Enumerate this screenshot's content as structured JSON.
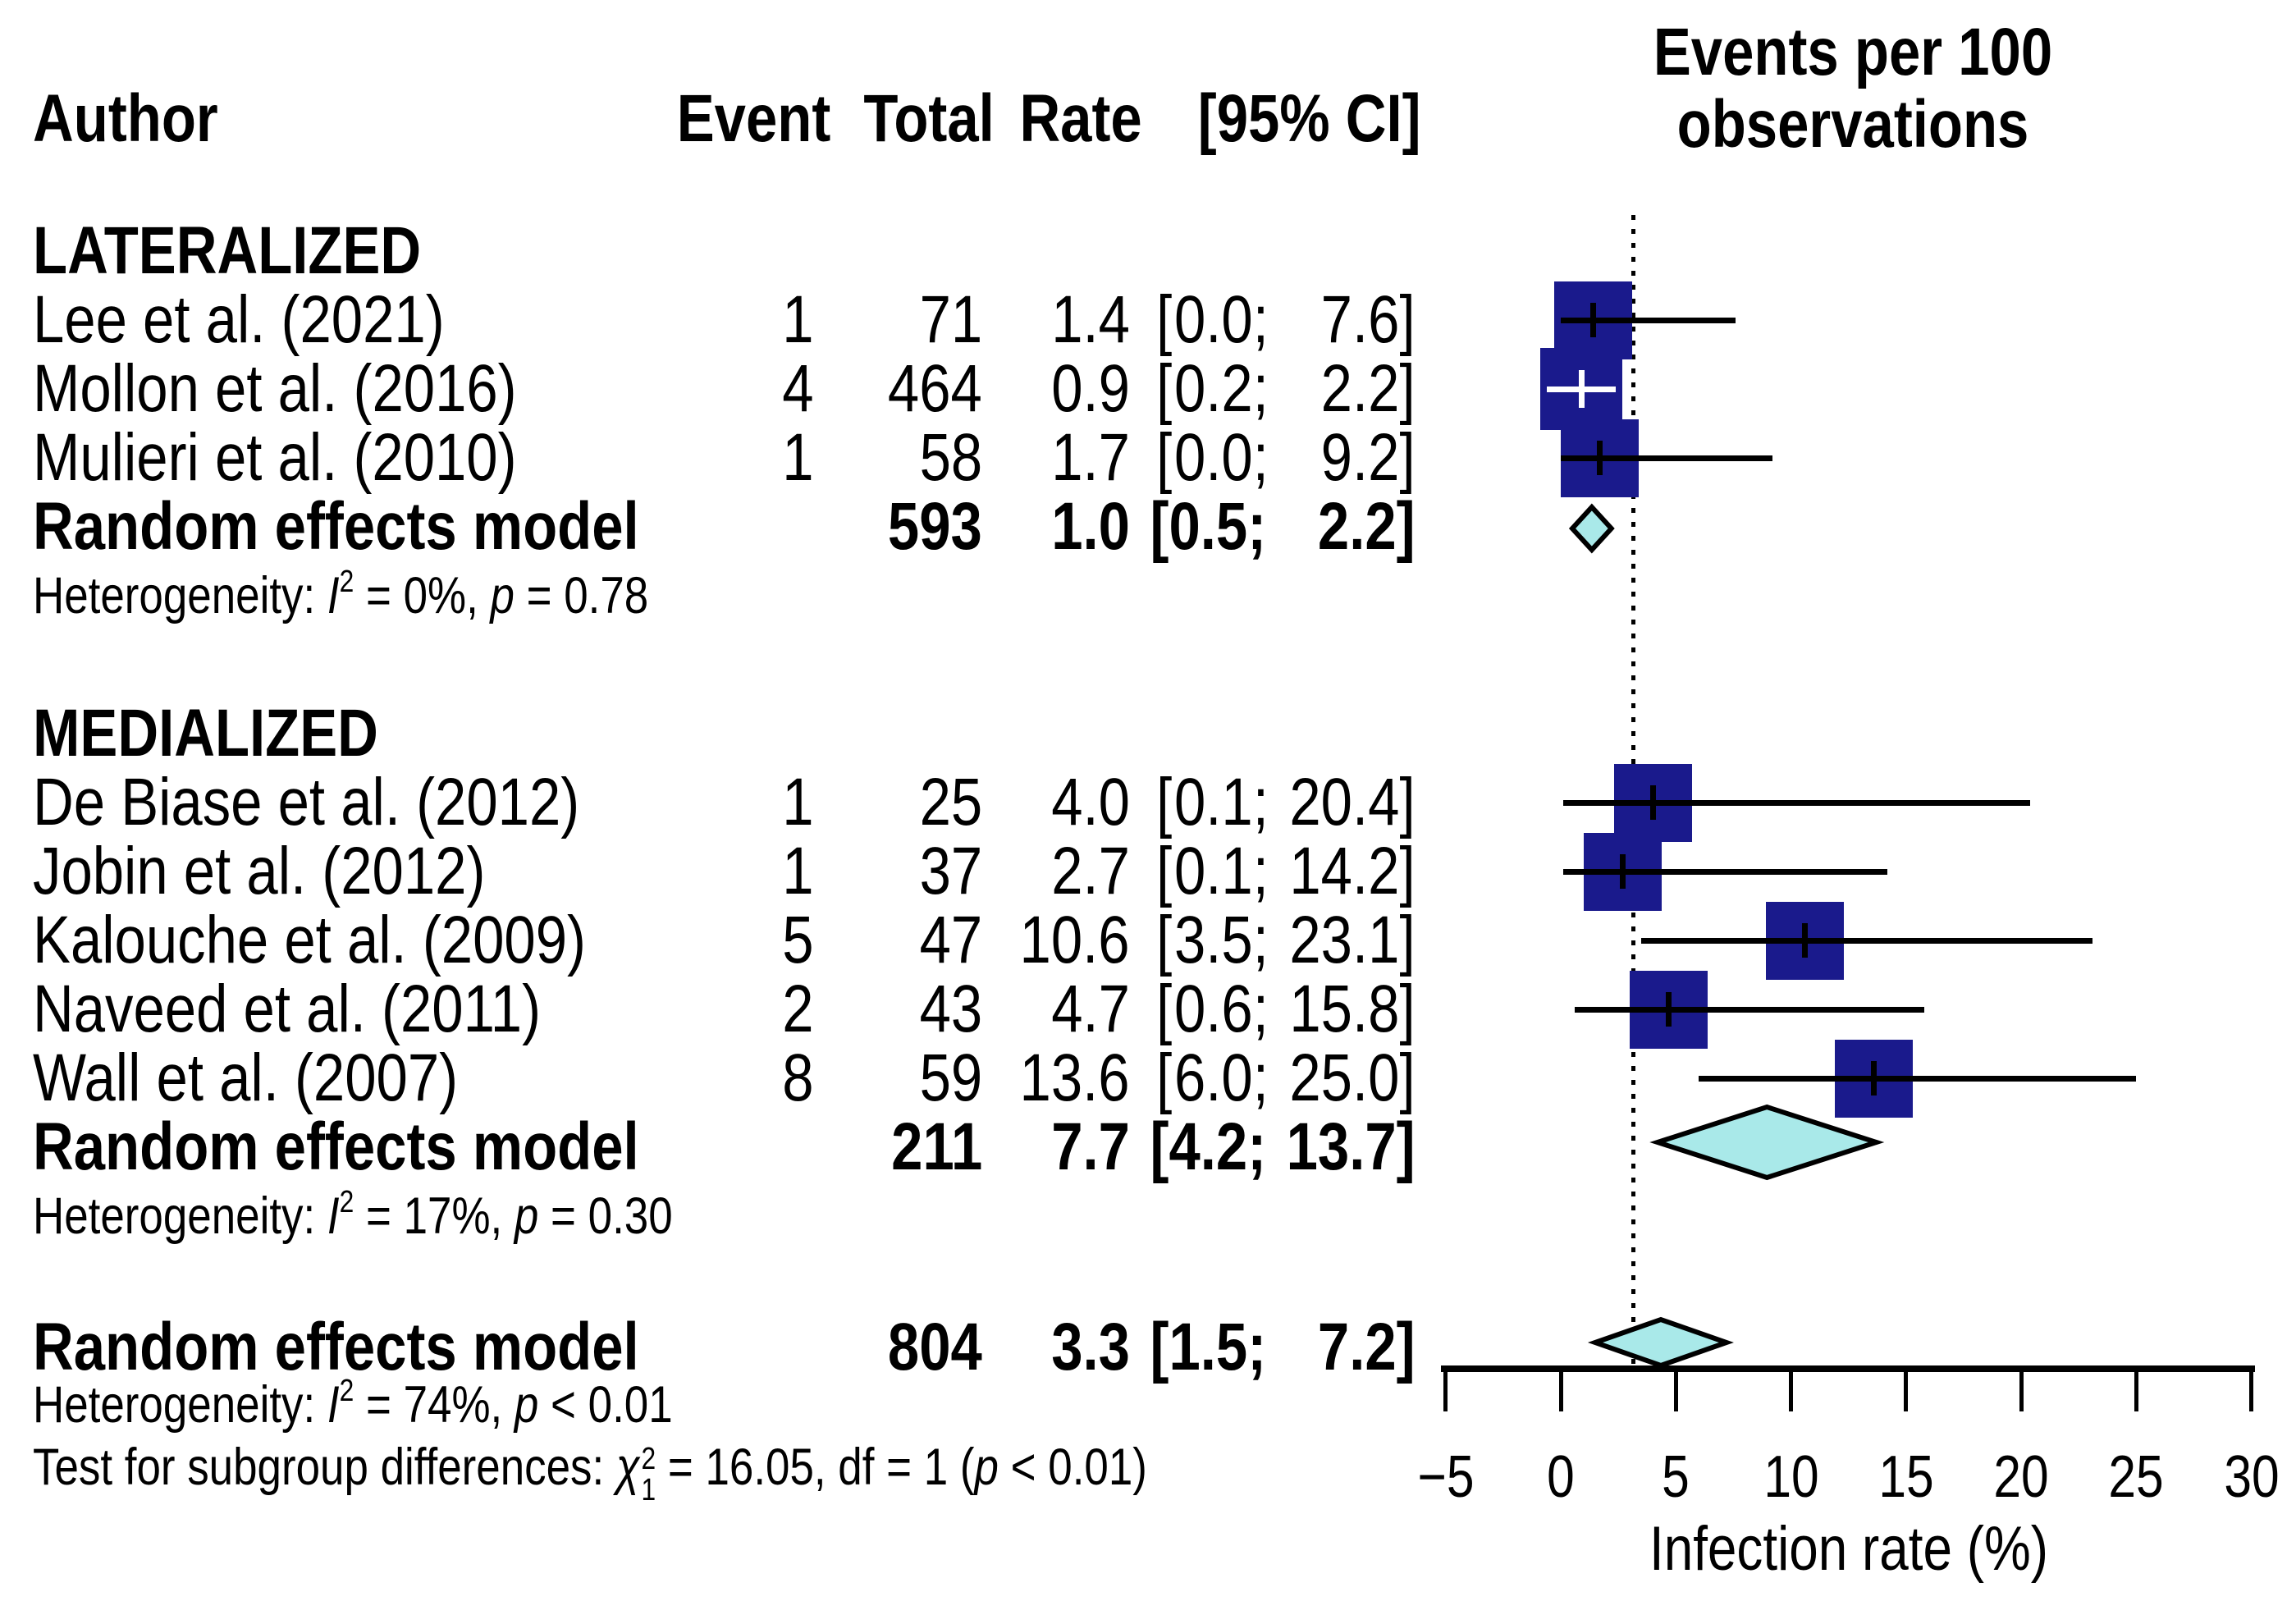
{
  "columns": {
    "author": "Author",
    "event": "Event",
    "total": "Total",
    "rate": "Rate",
    "ci": "[95% CI]"
  },
  "plot": {
    "header_line1": "Events per 100",
    "header_line2": "observations"
  },
  "labels": {
    "heterogeneity_prefix": "Heterogeneity:",
    "i_symbol": "I",
    "p_symbol": "p",
    "chi_symbol": "χ",
    "df_label": "df"
  },
  "colors": {
    "square": "#1a1a8c",
    "diamond": "#a9e9e9",
    "line": "#000000",
    "background": "#ffffff"
  },
  "chart_data": {
    "type": "forest",
    "title": "Events per 100 observations",
    "x_axis": {
      "label": "Infection rate (%)",
      "ticks": [
        -5,
        0,
        5,
        10,
        15,
        20,
        25,
        30
      ],
      "range": [
        -5,
        30
      ]
    },
    "reference_line": 3.3,
    "groups": [
      {
        "name": "LATERALIZED",
        "studies": [
          {
            "author": "Lee et al. (2021)",
            "event": 1,
            "total": 71,
            "rate": 1.4,
            "ci_low": 0.0,
            "ci_high": 7.6
          },
          {
            "author": "Mollon et al. (2016)",
            "event": 4,
            "total": 464,
            "rate": 0.9,
            "ci_low": 0.2,
            "ci_high": 2.2,
            "cross": "white"
          },
          {
            "author": "Mulieri et al. (2010)",
            "event": 1,
            "total": 58,
            "rate": 1.7,
            "ci_low": 0.0,
            "ci_high": 9.2
          }
        ],
        "pooled": {
          "label": "Random effects model",
          "total": 593,
          "rate": 1.0,
          "ci_low": 0.5,
          "ci_high": 2.2
        },
        "heterogeneity": {
          "i2": "0%",
          "p_rel": "=",
          "p": "0.78"
        }
      },
      {
        "name": "MEDIALIZED",
        "studies": [
          {
            "author": "De Biase et al. (2012)",
            "event": 1,
            "total": 25,
            "rate": 4.0,
            "ci_low": 0.1,
            "ci_high": 20.4
          },
          {
            "author": "Jobin et al. (2012)",
            "event": 1,
            "total": 37,
            "rate": 2.7,
            "ci_low": 0.1,
            "ci_high": 14.2
          },
          {
            "author": "Kalouche et al. (2009)",
            "event": 5,
            "total": 47,
            "rate": 10.6,
            "ci_low": 3.5,
            "ci_high": 23.1
          },
          {
            "author": "Naveed et al. (2011)",
            "event": 2,
            "total": 43,
            "rate": 4.7,
            "ci_low": 0.6,
            "ci_high": 15.8
          },
          {
            "author": "Wall et al. (2007)",
            "event": 8,
            "total": 59,
            "rate": 13.6,
            "ci_low": 6.0,
            "ci_high": 25.0
          }
        ],
        "pooled": {
          "label": "Random effects model",
          "total": 211,
          "rate": 7.7,
          "ci_low": 4.2,
          "ci_high": 13.7
        },
        "heterogeneity": {
          "i2": "17%",
          "p_rel": "=",
          "p": "0.30"
        }
      }
    ],
    "overall": {
      "label": "Random effects model",
      "total": 804,
      "rate": 3.3,
      "ci_low": 1.5,
      "ci_high": 7.2
    },
    "overall_heterogeneity": {
      "i2": "74%",
      "p_rel": "<",
      "p": "0.01"
    },
    "subgroup_test": {
      "prefix": "Test for subgroup differences:",
      "chi_sup": "2",
      "chi_sub": "1",
      "rel": "=",
      "value": "16.05",
      "df": "1",
      "p_rel": "<",
      "p": "0.01"
    }
  }
}
